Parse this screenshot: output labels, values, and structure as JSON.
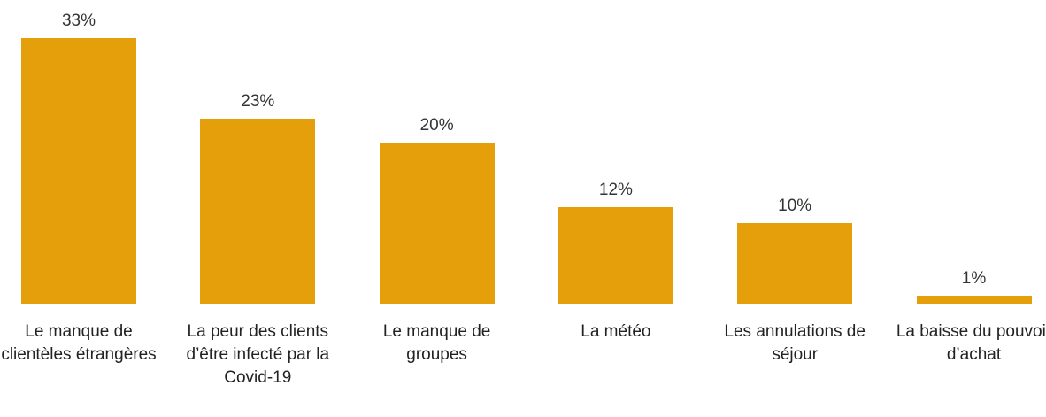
{
  "chart_data": {
    "type": "bar",
    "categories": [
      "Le manque de clientèles étrangères",
      "La peur des clients d’être infecté par la Covid-19",
      "Le manque de groupes",
      "La météo",
      "Les annulations de séjour",
      "La baisse du pouvoir d’achat"
    ],
    "values": [
      33,
      23,
      20,
      12,
      10,
      1
    ],
    "value_labels": [
      "33%",
      "23%",
      "20%",
      "12%",
      "10%",
      "1%"
    ],
    "color": "#e59f0b"
  }
}
